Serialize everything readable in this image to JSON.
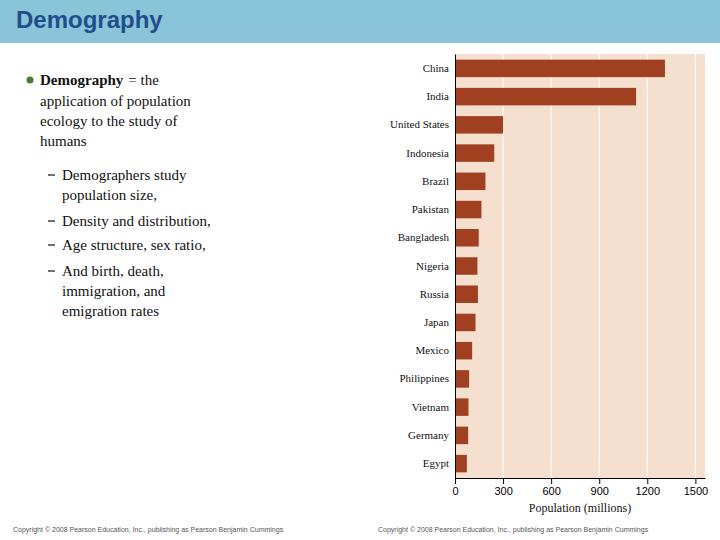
{
  "chart_data": {
    "type": "bar",
    "orientation": "horizontal",
    "title": "Demography",
    "categories": [
      "China",
      "India",
      "United States",
      "Indonesia",
      "Brazil",
      "Pakistan",
      "Bangladesh",
      "Nigeria",
      "Russia",
      "Japan",
      "Mexico",
      "Philippines",
      "Vietnam",
      "Germany",
      "Egypt"
    ],
    "values": [
      1310,
      1130,
      300,
      245,
      190,
      165,
      148,
      140,
      143,
      128,
      107,
      88,
      84,
      82,
      74
    ],
    "color": "#A04020",
    "xlabel": "Population (millions)",
    "xlim": [
      0,
      1560
    ],
    "xticks": [
      0,
      300,
      600,
      900,
      1200,
      1500
    ],
    "grid": true,
    "annotations": [
      "Demography",
      "= the",
      "application of population",
      "ecology to the study of",
      "humans",
      "Demographers study",
      "population size,",
      "Density and distribution,",
      "Age structure, sex ratio,",
      "And birth, death,",
      "immigration, and",
      "emigration rates",
      "Copyright © 2008 Pearson Education, Inc., publishing as Pearson Benjamin Cummings",
      "Copyright © 2008 Pearson Education, Inc., publishing as Pearson Benjamin Cummings"
    ]
  }
}
